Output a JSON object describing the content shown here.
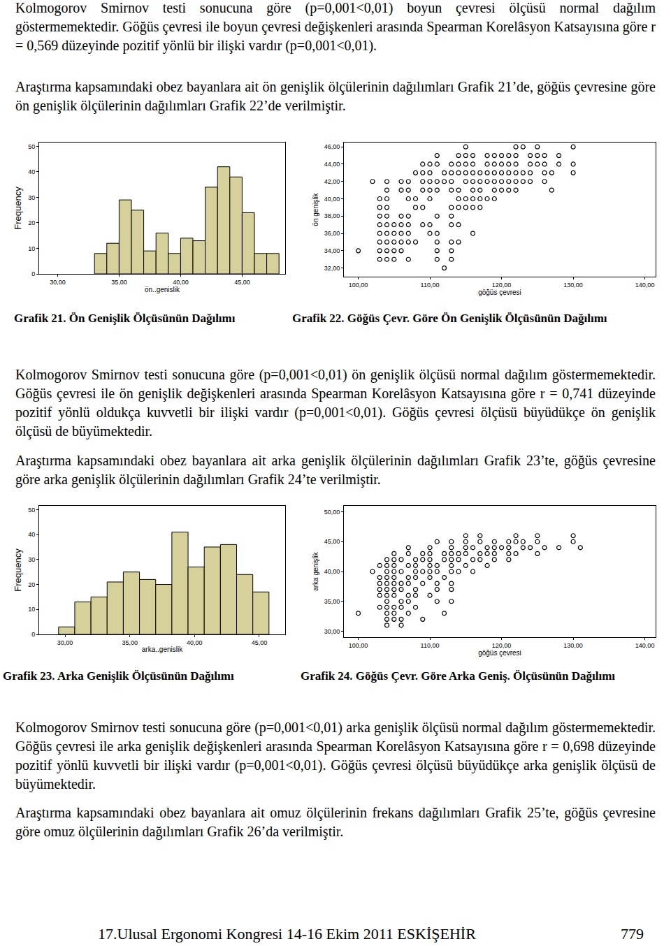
{
  "paragraphs": [
    "Kolmogorov Smirnov testi sonucuna göre (p=0,001<0,01) boyun çevresi ölçüsü normal dağılım göstermemektedir. Göğüs çevresi ile boyun çevresi değişkenleri arasında Spearman Korelâsyon Katsayısına göre r = 0,569 düzeyinde pozitif yönlü bir ilişki vardır (p=0,001<0,01).",
    "Araştırma kapsamındaki obez bayanlara ait ön genişlik ölçülerinin dağılımları Grafik 21’de, göğüs çevresine göre ön genişlik ölçülerinin dağılımları Grafik 22’de verilmiştir.",
    "Kolmogorov Smirnov testi sonucuna göre (p=0,001<0,01) ön genişlik ölçüsü normal dağılım göstermemektedir. Göğüs çevresi ile ön genişlik değişkenleri arasında Spearman Korelâsyon Katsayısına göre r = 0,741 düzeyinde pozitif yönlü oldukça kuvvetli bir ilişki vardır (p=0,001<0,01). Göğüs çevresi ölçüsü büyüdükçe ön genişlik ölçüsü de büyümektedir.",
    "Araştırma kapsamındaki obez bayanlara ait arka genişlik ölçülerinin dağılımları Grafik 23’te, göğüs çevresine göre arka genişlik ölçülerinin dağılımları Grafik 24’te verilmiştir.",
    "Kolmogorov Smirnov testi sonucuna göre (p=0,001<0,01) arka genişlik ölçüsü normal dağılım göstermemektedir. Göğüs çevresi ile arka genişlik değişkenleri arasında Spearman Korelâsyon Katsayısına göre r = 0,698 düzeyinde pozitif yönlü kuvvetli bir ilişki vardır (p=0,001<0,01). Göğüs çevresi ölçüsü büyüdükçe arka genişlik ölçüsü de büyümektedir.",
    "Araştırma kapsamındaki obez bayanlara ait omuz ölçülerinin frekans dağılımları Grafik 25’te, göğüs çevresine göre omuz ölçülerinin dağılımları Grafik 26’da verilmiştir."
  ],
  "footer": {
    "left": "17.Ulusal Ergonomi Kongresi 14-16 Ekim 2011 ESKİŞEHİR",
    "page": "779"
  },
  "chart_data": [
    {
      "type": "histogram",
      "title": "Grafik 21. Ön Genişlik Ölçüsünün Dağılımı",
      "bins": [
        33,
        34,
        35,
        36,
        37,
        38,
        39,
        40,
        41,
        42,
        43,
        44,
        45,
        46,
        47,
        48
      ],
      "values": [
        8,
        12,
        29,
        25,
        9,
        16,
        8,
        14,
        13,
        34,
        42,
        38,
        24,
        8,
        8
      ],
      "color": "#d6d09a",
      "xlabel": "ön..genislik",
      "ylabel": "Frequency",
      "xlim": [
        28.5,
        48.5
      ],
      "ylim": [
        0,
        51.5
      ],
      "xticks": [
        {
          "value": 30,
          "label": "30,00"
        },
        {
          "value": 35,
          "label": "35,00"
        },
        {
          "value": 40,
          "label": "40,00"
        },
        {
          "value": 45,
          "label": "45,00"
        }
      ],
      "yticks": [
        0,
        10,
        20,
        30,
        40,
        50
      ],
      "grid": false
    },
    {
      "type": "scatter",
      "title": "Grafik 22. Göğüs Çevr. Göre Ön Genişlik Ölçüsünün Dağılımı",
      "x": [
        115,
        122,
        123,
        125,
        130,
        111,
        114,
        115,
        116,
        118,
        119,
        120,
        121,
        122,
        124,
        125,
        126,
        128,
        109,
        110,
        111,
        113,
        114,
        115,
        116,
        118,
        119,
        120,
        121,
        122,
        124,
        125,
        126,
        128,
        130,
        108,
        109,
        110,
        112,
        113,
        114,
        115,
        116,
        117,
        118,
        119,
        120,
        121,
        122,
        123,
        124,
        126,
        127,
        130,
        102,
        104,
        106,
        107,
        109,
        110,
        111,
        112,
        113,
        115,
        116,
        117,
        118,
        119,
        120,
        121,
        122,
        123,
        124,
        126,
        104,
        106,
        107,
        109,
        110,
        111,
        113,
        114,
        116,
        117,
        119,
        120,
        121,
        122,
        127,
        103,
        104,
        107,
        108,
        110,
        114,
        115,
        116,
        117,
        118,
        119,
        103,
        104,
        108,
        109,
        113,
        114,
        115,
        116,
        117,
        103,
        104,
        106,
        107,
        111,
        113,
        103,
        104,
        105,
        106,
        107,
        109,
        110,
        113,
        114,
        103,
        104,
        105,
        106,
        107,
        110,
        111,
        116,
        103,
        104,
        105,
        106,
        107,
        108,
        111,
        113,
        114,
        100,
        103,
        104,
        105,
        106,
        111,
        113,
        103,
        104,
        105,
        107,
        111,
        113,
        112
      ],
      "values": [
        46,
        46,
        46,
        46,
        46,
        45,
        45,
        45,
        45,
        45,
        45,
        45,
        45,
        45,
        45,
        45,
        45,
        45,
        44,
        44,
        44,
        44,
        44,
        44,
        44,
        44,
        44,
        44,
        44,
        44,
        44,
        44,
        44,
        44,
        44,
        43,
        43,
        43,
        43,
        43,
        43,
        43,
        43,
        43,
        43,
        43,
        43,
        43,
        43,
        43,
        43,
        43,
        43,
        43,
        42,
        42,
        42,
        42,
        42,
        42,
        42,
        42,
        42,
        42,
        42,
        42,
        42,
        42,
        42,
        42,
        42,
        42,
        42,
        42,
        41,
        41,
        41,
        41,
        41,
        41,
        41,
        41,
        41,
        41,
        41,
        41,
        41,
        41,
        41,
        40,
        40,
        40,
        40,
        40,
        40,
        40,
        40,
        40,
        40,
        40,
        39,
        39,
        39,
        39,
        39,
        39,
        39,
        39,
        39,
        38,
        38,
        38,
        38,
        38,
        38,
        37,
        37,
        37,
        37,
        37,
        37,
        37,
        37,
        37,
        36,
        36,
        36,
        36,
        36,
        36,
        36,
        36,
        35,
        35,
        35,
        35,
        35,
        35,
        35,
        35,
        35,
        34,
        34,
        34,
        34,
        34,
        34,
        34,
        33,
        33,
        33,
        33,
        33,
        33,
        32
      ],
      "marker": "circle-open",
      "color": "#000000",
      "xlabel": "göğüs çevresi",
      "ylabel": "ön genişlik",
      "xlim": [
        98,
        141.5
      ],
      "ylim": [
        31,
        46.5
      ],
      "xticks": [
        {
          "value": 100,
          "label": "100,00"
        },
        {
          "value": 110,
          "label": "110,00"
        },
        {
          "value": 120,
          "label": "120,00"
        },
        {
          "value": 130,
          "label": "130,00"
        },
        {
          "value": 140,
          "label": "140,00"
        }
      ],
      "yticks": [
        {
          "value": 32,
          "label": "32,00"
        },
        {
          "value": 34,
          "label": "34,00"
        },
        {
          "value": 36,
          "label": "36,00"
        },
        {
          "value": 38,
          "label": "38,00"
        },
        {
          "value": 40,
          "label": "40,00"
        },
        {
          "value": 42,
          "label": "42,00"
        },
        {
          "value": 44,
          "label": "44,00"
        },
        {
          "value": 46,
          "label": "46,00"
        }
      ],
      "grid": false
    },
    {
      "type": "histogram",
      "title": "Grafik 23. Arka Genişlik Ölçüsünün Dağılımı",
      "bins": [
        29.5,
        30.75,
        32,
        33.25,
        34.5,
        35.75,
        37,
        38.25,
        39.5,
        40.75,
        42,
        43.25,
        44.5,
        45.75
      ],
      "values": [
        3,
        13,
        15,
        21,
        25,
        22,
        20,
        41,
        27,
        35,
        36,
        24,
        17
      ],
      "color": "#d6d09a",
      "xlabel": "arka..genislik",
      "ylabel": "Frequency",
      "xlim": [
        28,
        47
      ],
      "ylim": [
        0,
        51.5
      ],
      "xticks": [
        {
          "value": 30,
          "label": "30,00"
        },
        {
          "value": 35,
          "label": "35,00"
        },
        {
          "value": 40,
          "label": "40,00"
        },
        {
          "value": 45,
          "label": "45,00"
        }
      ],
      "yticks": [
        0,
        10,
        20,
        30,
        40,
        50
      ],
      "grid": false
    },
    {
      "type": "scatter",
      "title": "Grafik 24. Göğüs Çevr. Göre Arka Geniş. Ölçüsünün Dağılımı",
      "x": [
        115,
        117,
        122,
        125,
        130,
        111,
        113,
        115,
        117,
        119,
        121,
        122,
        123,
        125,
        130,
        107,
        110,
        113,
        115,
        116,
        118,
        119,
        120,
        121,
        123,
        124,
        126,
        128,
        131,
        105,
        107,
        109,
        110,
        112,
        113,
        114,
        115,
        117,
        118,
        119,
        121,
        122,
        125,
        104,
        105,
        106,
        108,
        109,
        110,
        112,
        113,
        114,
        116,
        117,
        119,
        121,
        103,
        104,
        105,
        107,
        108,
        110,
        111,
        113,
        115,
        118,
        102,
        104,
        105,
        106,
        108,
        109,
        110,
        111,
        113,
        114,
        116,
        103,
        104,
        105,
        107,
        108,
        110,
        112,
        103,
        104,
        105,
        106,
        107,
        109,
        111,
        113,
        103,
        104,
        105,
        106,
        108,
        111,
        113,
        103,
        104,
        105,
        107,
        108,
        110,
        104,
        106,
        107,
        111,
        113,
        103,
        104,
        105,
        106,
        108,
        100,
        104,
        105,
        107,
        112,
        104,
        105,
        106,
        109,
        104,
        106
      ],
      "values": [
        46,
        46,
        46,
        46,
        46,
        45,
        45,
        45,
        45,
        45,
        45,
        45,
        45,
        45,
        45,
        44,
        44,
        44,
        44,
        44,
        44,
        44,
        44,
        44,
        44,
        44,
        44,
        44,
        44,
        43,
        43,
        43,
        43,
        43,
        43,
        43,
        43,
        43,
        43,
        43,
        43,
        43,
        43,
        42,
        42,
        42,
        42,
        42,
        42,
        42,
        42,
        42,
        42,
        42,
        42,
        42,
        41,
        41,
        41,
        41,
        41,
        41,
        41,
        41,
        41,
        41,
        40,
        40,
        40,
        40,
        40,
        40,
        40,
        40,
        40,
        40,
        40,
        39,
        39,
        39,
        39,
        39,
        39,
        39,
        38,
        38,
        38,
        38,
        38,
        38,
        38,
        38,
        37,
        37,
        37,
        37,
        37,
        37,
        37,
        36,
        36,
        36,
        36,
        36,
        36,
        35,
        35,
        35,
        35,
        35,
        34,
        34,
        34,
        34,
        34,
        33,
        33,
        33,
        33,
        33,
        32,
        32,
        32,
        32,
        31,
        31
      ],
      "marker": "circle-open",
      "color": "#000000",
      "xlabel": "göğüs çevresi",
      "ylabel": "arka genişlik",
      "xlim": [
        98,
        141.5
      ],
      "ylim": [
        29,
        51
      ],
      "xticks": [
        {
          "value": 100,
          "label": "100,00"
        },
        {
          "value": 110,
          "label": "110,00"
        },
        {
          "value": 120,
          "label": "120,00"
        },
        {
          "value": 130,
          "label": "130,00"
        },
        {
          "value": 140,
          "label": "140,00"
        }
      ],
      "yticks": [
        {
          "value": 30,
          "label": "30,00"
        },
        {
          "value": 35,
          "label": "35,00"
        },
        {
          "value": 40,
          "label": "40,00"
        },
        {
          "value": 45,
          "label": "45,00"
        },
        {
          "value": 50,
          "label": "50,00"
        }
      ],
      "grid": false
    }
  ]
}
